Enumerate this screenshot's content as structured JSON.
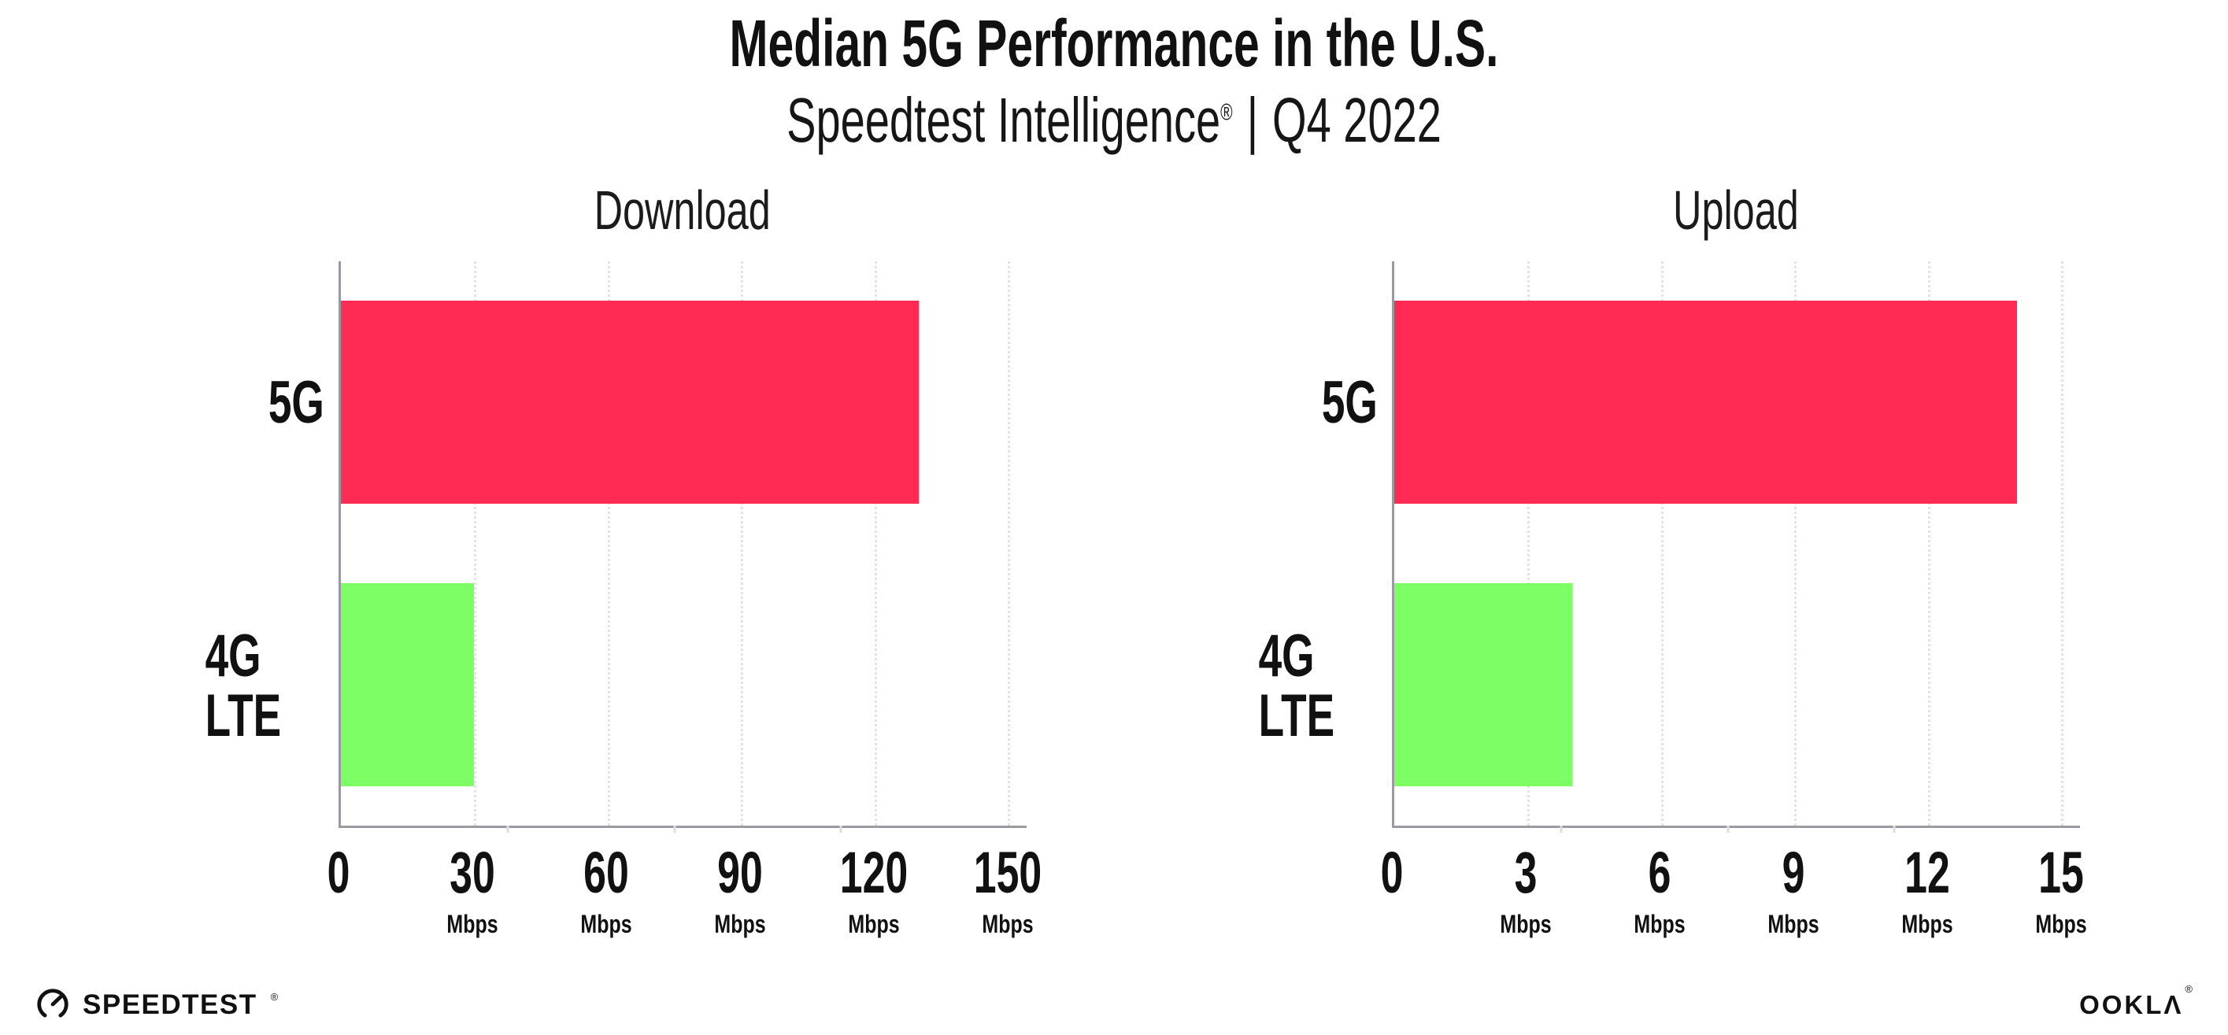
{
  "header": {
    "title": "Median 5G Performance in the U.S.",
    "subtitle_brand": "Speedtest Intelligence",
    "subtitle_reg": "®",
    "subtitle_sep": "|",
    "subtitle_period": "Q4 2022"
  },
  "chart_data": [
    {
      "type": "bar",
      "orientation": "horizontal",
      "title": "Download",
      "categories": [
        "5G",
        "4G LTE"
      ],
      "values": [
        130,
        30
      ],
      "unit": "Mbps",
      "xlim": [
        0,
        150
      ],
      "xticks": [
        0,
        30,
        60,
        90,
        120,
        150
      ],
      "bar_colors": [
        "#FF2B55",
        "#7DFE65"
      ],
      "grid": "dotted-vertical-gridlines",
      "legend": "none"
    },
    {
      "type": "bar",
      "orientation": "horizontal",
      "title": "Upload",
      "categories": [
        "5G",
        "4G LTE"
      ],
      "values": [
        14,
        4
      ],
      "unit": "Mbps",
      "xlim": [
        0,
        15
      ],
      "xticks": [
        0,
        3,
        6,
        9,
        12,
        15
      ],
      "bar_colors": [
        "#FF2B55",
        "#7DFE65"
      ],
      "grid": "dotted-vertical-gridlines",
      "legend": "none"
    }
  ],
  "footer": {
    "speedtest_wordmark": "SPEEDTEST",
    "speedtest_reg": "®",
    "ookla_wordmark": "OOKLΛ",
    "ookla_reg": "®"
  },
  "colors": {
    "bar_5g": "#FF2B55",
    "bar_4g_lte": "#7DFE65",
    "gridline": "#E3E2E9",
    "axis": "#9A9AA0",
    "text": "#111111",
    "background": "#FFFFFF"
  }
}
